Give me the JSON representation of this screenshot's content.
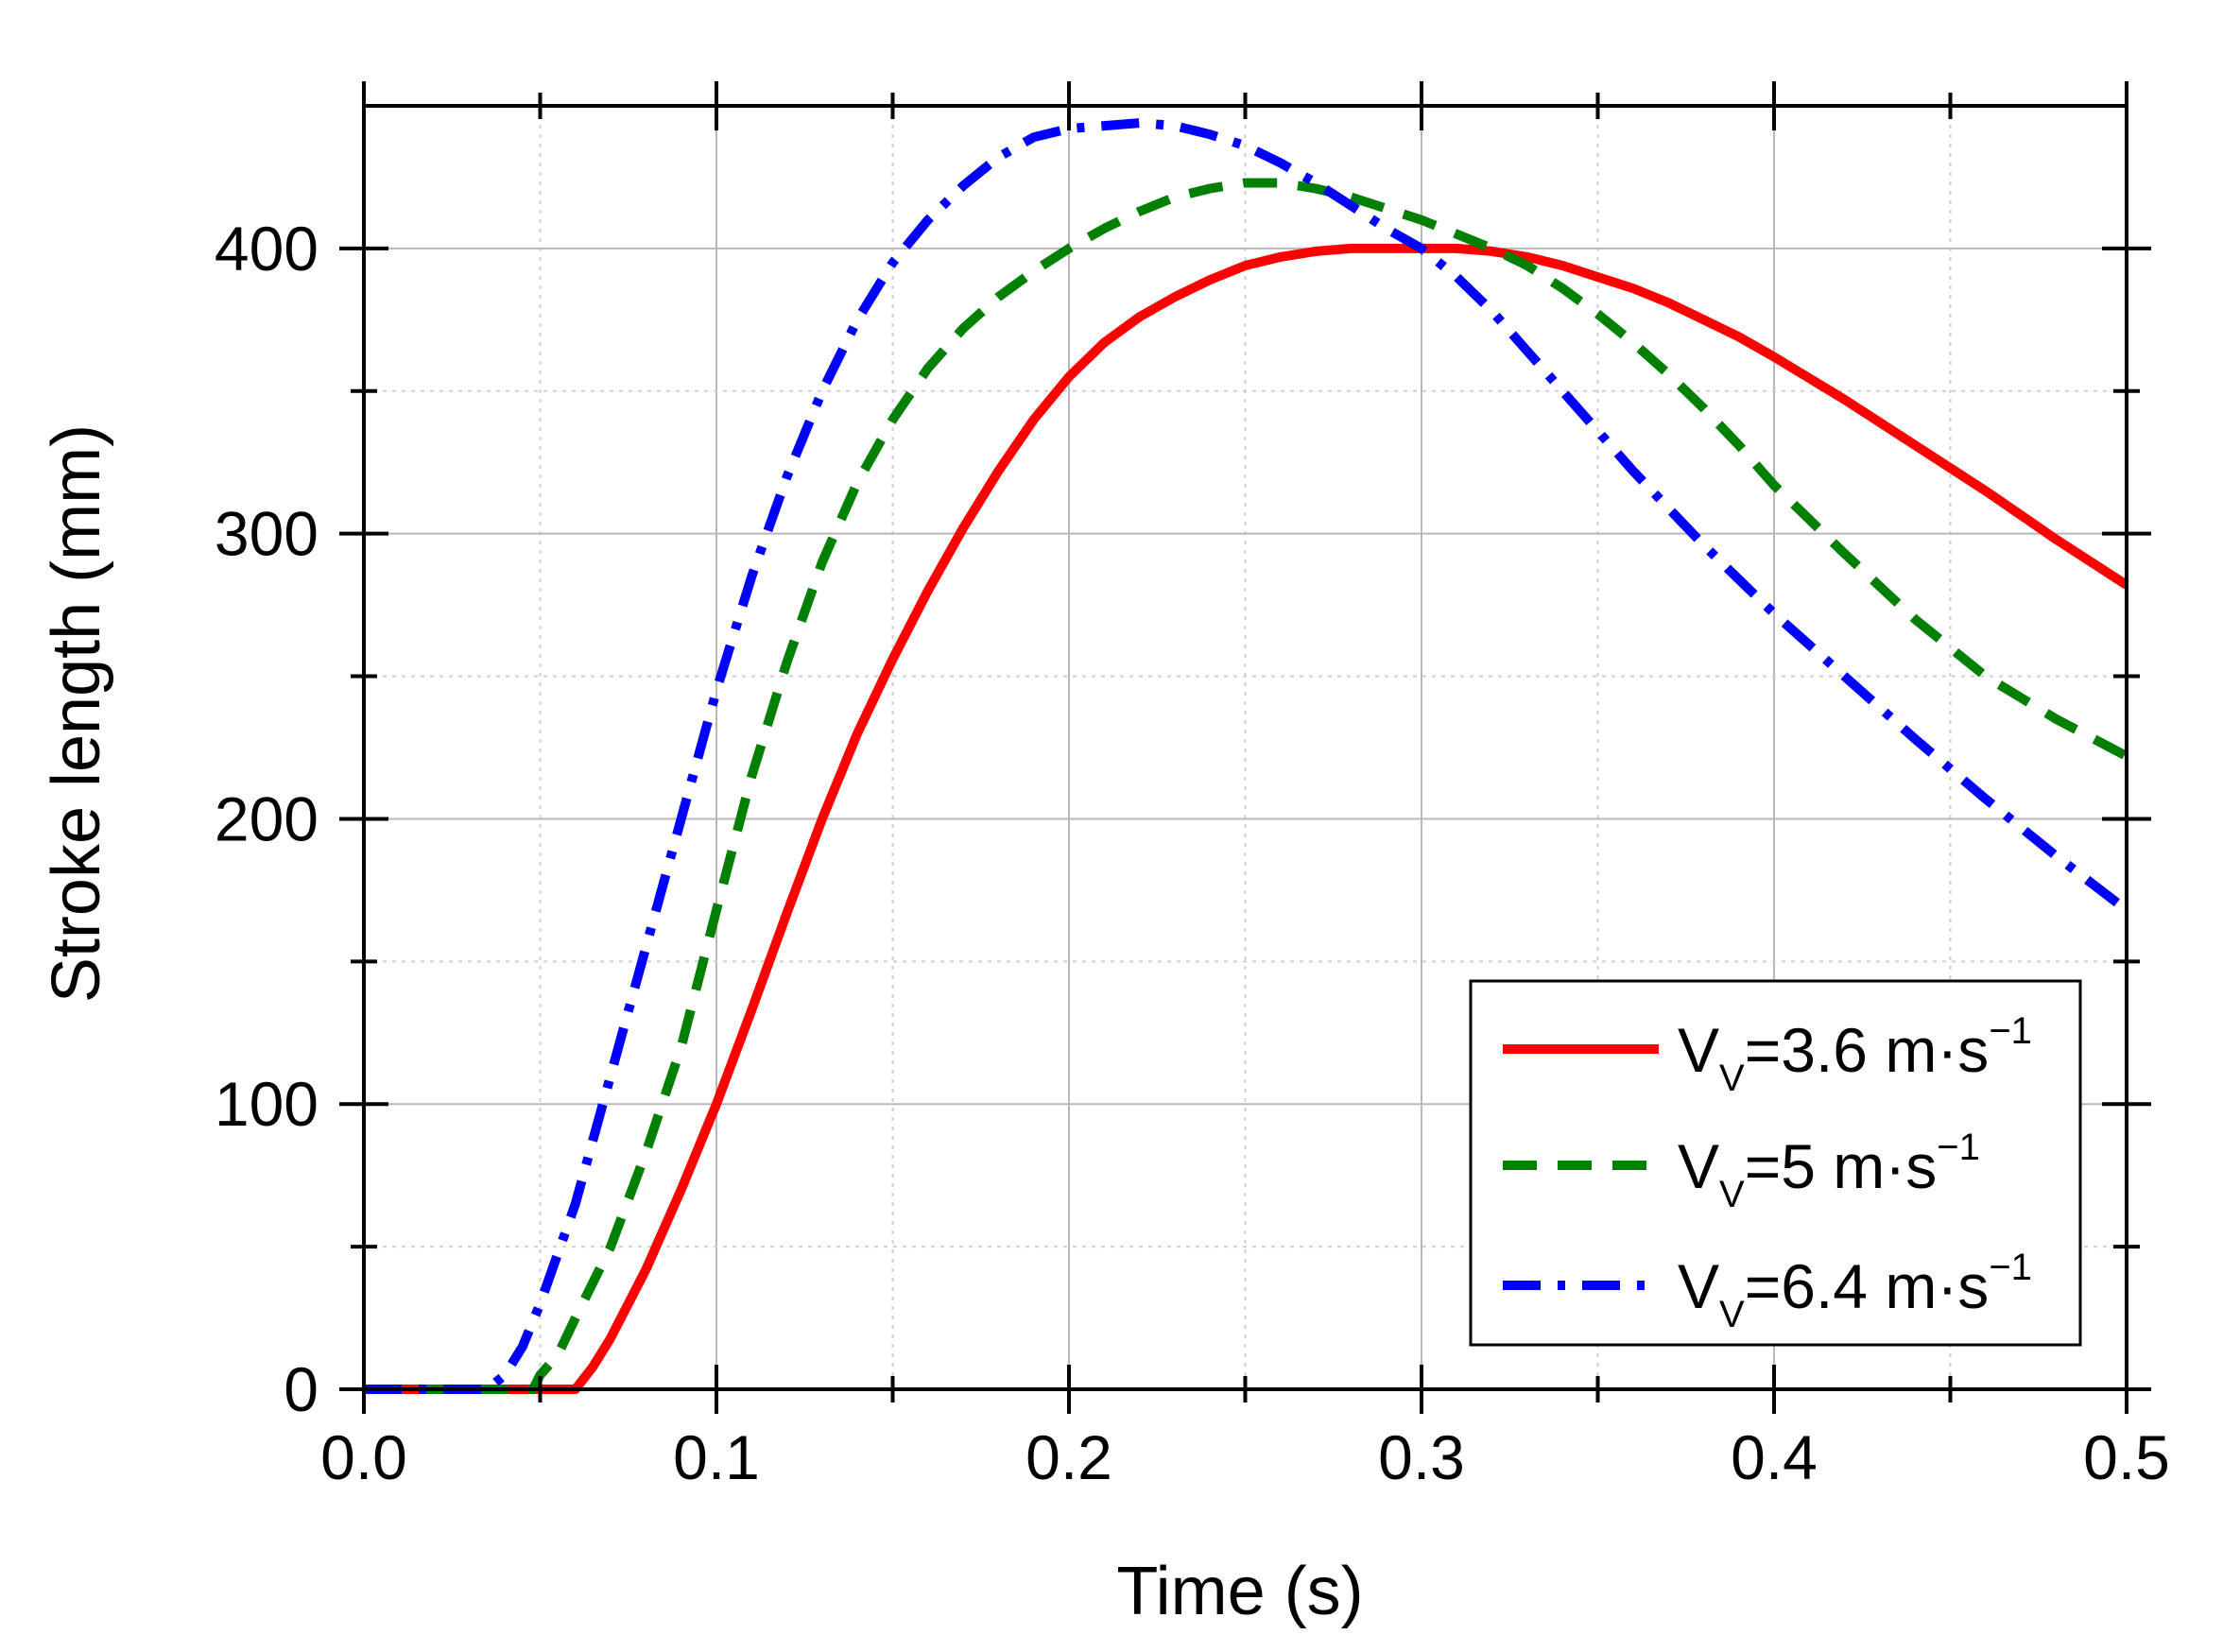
{
  "chart_data": {
    "type": "line",
    "title": "",
    "xlabel": "Time (s)",
    "ylabel": "Stroke length (mm)",
    "xlim": [
      0.0,
      0.5
    ],
    "ylim": [
      0,
      450
    ],
    "xticks": [
      0.0,
      0.1,
      0.2,
      0.3,
      0.4,
      0.5
    ],
    "xtick_labels": [
      "0.0",
      "0.1",
      "0.2",
      "0.3",
      "0.4",
      "0.5"
    ],
    "yticks": [
      0,
      100,
      200,
      300,
      400
    ],
    "ytick_labels": [
      "0",
      "100",
      "200",
      "300",
      "400"
    ],
    "grid": true,
    "legend_position": "bottom-right",
    "series": [
      {
        "name": "VV=3.6 m·s−1",
        "label_base": "V",
        "label_sub": "V",
        "label_rest": "=3.6 m·s",
        "label_sup": "−1",
        "color": "#ff0000",
        "style": "solid",
        "x": [
          0.0,
          0.02,
          0.04,
          0.06,
          0.065,
          0.07,
          0.08,
          0.09,
          0.1,
          0.11,
          0.12,
          0.13,
          0.14,
          0.15,
          0.16,
          0.17,
          0.18,
          0.19,
          0.2,
          0.21,
          0.22,
          0.23,
          0.24,
          0.25,
          0.26,
          0.27,
          0.28,
          0.29,
          0.3,
          0.31,
          0.32,
          0.33,
          0.34,
          0.35,
          0.36,
          0.37,
          0.38,
          0.39,
          0.4,
          0.42,
          0.44,
          0.46,
          0.48,
          0.5
        ],
        "y": [
          0,
          0,
          0,
          0,
          8,
          18,
          42,
          70,
          100,
          133,
          167,
          200,
          230,
          256,
          280,
          302,
          322,
          340,
          355,
          367,
          376,
          383,
          389,
          394,
          397,
          399,
          400,
          400,
          400,
          400,
          399,
          397,
          394,
          390,
          386,
          381,
          375,
          369,
          362,
          347,
          331,
          315,
          298,
          282
        ]
      },
      {
        "name": "VV=5 m·s−1",
        "label_base": "V",
        "label_sub": "V",
        "label_rest": "=5 m·s",
        "label_sup": "−1",
        "color": "#008000",
        "style": "dashed",
        "x": [
          0.0,
          0.02,
          0.04,
          0.048,
          0.05,
          0.055,
          0.06,
          0.07,
          0.08,
          0.09,
          0.1,
          0.11,
          0.12,
          0.13,
          0.14,
          0.15,
          0.16,
          0.17,
          0.18,
          0.19,
          0.2,
          0.21,
          0.22,
          0.23,
          0.24,
          0.25,
          0.26,
          0.27,
          0.28,
          0.29,
          0.3,
          0.31,
          0.32,
          0.33,
          0.34,
          0.35,
          0.36,
          0.37,
          0.38,
          0.39,
          0.4,
          0.42,
          0.44,
          0.46,
          0.48,
          0.5
        ],
        "y": [
          0,
          0,
          0,
          0,
          5,
          12,
          25,
          50,
          83,
          120,
          168,
          215,
          255,
          290,
          318,
          340,
          358,
          372,
          383,
          392,
          400,
          407,
          413,
          418,
          421,
          423,
          423,
          421,
          418,
          414,
          410,
          405,
          400,
          394,
          386,
          377,
          367,
          356,
          344,
          331,
          317,
          293,
          270,
          250,
          235,
          222
        ]
      },
      {
        "name": "VV=6.4 m·s−1",
        "label_base": "V",
        "label_sub": "V",
        "label_rest": "=6.4 m·s",
        "label_sup": "−1",
        "color": "#0000ff",
        "style": "dashdot",
        "x": [
          0.0,
          0.02,
          0.035,
          0.04,
          0.045,
          0.05,
          0.06,
          0.07,
          0.08,
          0.09,
          0.1,
          0.11,
          0.12,
          0.13,
          0.14,
          0.15,
          0.16,
          0.17,
          0.18,
          0.19,
          0.2,
          0.21,
          0.22,
          0.23,
          0.24,
          0.25,
          0.26,
          0.27,
          0.28,
          0.29,
          0.3,
          0.31,
          0.32,
          0.33,
          0.34,
          0.35,
          0.36,
          0.37,
          0.38,
          0.39,
          0.4,
          0.42,
          0.44,
          0.46,
          0.48,
          0.5
        ],
        "y": [
          0,
          0,
          0,
          5,
          15,
          30,
          65,
          110,
          155,
          200,
          245,
          285,
          320,
          350,
          375,
          395,
          410,
          422,
          432,
          439,
          442,
          443,
          444,
          443,
          440,
          436,
          430,
          423,
          415,
          407,
          400,
          390,
          378,
          364,
          350,
          336,
          322,
          309,
          296,
          284,
          272,
          250,
          228,
          207,
          187,
          168
        ]
      }
    ]
  }
}
